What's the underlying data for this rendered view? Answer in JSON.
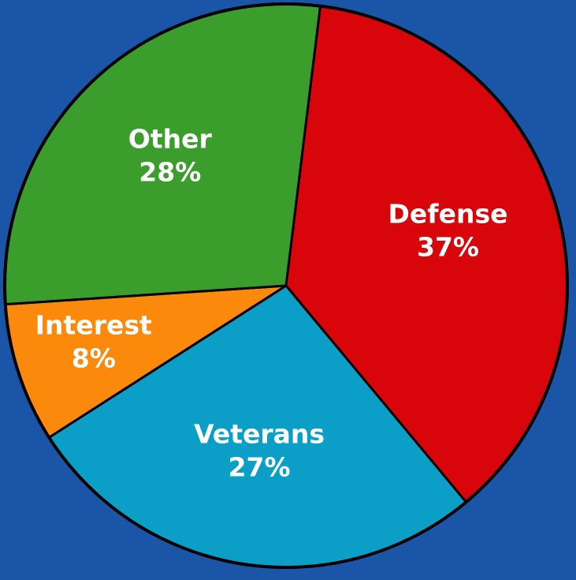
{
  "background_color": "#1a55a8",
  "outline_color": "#000000",
  "chart_data": {
    "type": "pie",
    "title": "",
    "legend": "none",
    "start_angle_deg": 7,
    "slices": [
      {
        "label": "Defense",
        "value": 37,
        "value_label": "37%",
        "color": "#d8060a"
      },
      {
        "label": "Veterans",
        "value": 27,
        "value_label": "27%",
        "color": "#0b9fc8"
      },
      {
        "label": "Interest",
        "value": 8,
        "value_label": "8%",
        "color": "#fb8a0c"
      },
      {
        "label": "Other",
        "value": 28,
        "value_label": "28%",
        "color": "#3b9d2c"
      }
    ]
  }
}
